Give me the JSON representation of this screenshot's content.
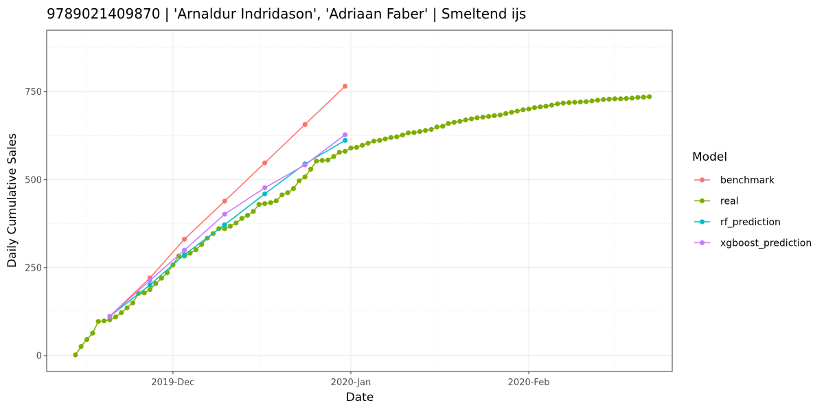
{
  "chart_data": {
    "type": "line",
    "title": "9789021409870 | 'Arnaldur Indridason', 'Adriaan Faber' | Smeltend ijs",
    "xlabel": "Date",
    "ylabel": "Daily Cumulative Sales",
    "legend_title": "Model",
    "legend_position": "right",
    "grid": true,
    "x_type": "date",
    "xlim": [
      "2019-11-09",
      "2020-02-26"
    ],
    "ylim": [
      -45,
      925
    ],
    "x_ticks": [
      {
        "date": "2019-12-01",
        "label": "2019-Dec"
      },
      {
        "date": "2020-01-01",
        "label": "2020-Jan"
      },
      {
        "date": "2020-02-01",
        "label": "2020-Feb"
      }
    ],
    "x_minor_ticks": [
      "2019-11-16",
      "2019-12-16",
      "2020-01-16",
      "2020-02-16"
    ],
    "y_ticks": [
      0,
      250,
      500,
      750
    ],
    "y_minor_ticks": [
      125,
      375,
      625,
      875
    ],
    "series": [
      {
        "name": "benchmark",
        "color": "#F8766D",
        "x": [
          "2019-11-20",
          "2019-11-27",
          "2019-12-03",
          "2019-12-10",
          "2019-12-17",
          "2019-12-24",
          "2019-12-31"
        ],
        "y": [
          112,
          221,
          331,
          439,
          548,
          657,
          766
        ]
      },
      {
        "name": "real",
        "color": "#7CAE00",
        "x": [
          "2019-11-14",
          "2019-11-15",
          "2019-11-16",
          "2019-11-17",
          "2019-11-18",
          "2019-11-19",
          "2019-11-20",
          "2019-11-21",
          "2019-11-22",
          "2019-11-23",
          "2019-11-24",
          "2019-11-25",
          "2019-11-26",
          "2019-11-27",
          "2019-11-28",
          "2019-11-29",
          "2019-11-30",
          "2019-12-01",
          "2019-12-02",
          "2019-12-03",
          "2019-12-04",
          "2019-12-05",
          "2019-12-06",
          "2019-12-07",
          "2019-12-08",
          "2019-12-09",
          "2019-12-10",
          "2019-12-11",
          "2019-12-12",
          "2019-12-13",
          "2019-12-14",
          "2019-12-15",
          "2019-12-16",
          "2019-12-17",
          "2019-12-18",
          "2019-12-19",
          "2019-12-20",
          "2019-12-21",
          "2019-12-22",
          "2019-12-23",
          "2019-12-24",
          "2019-12-25",
          "2019-12-26",
          "2019-12-27",
          "2019-12-28",
          "2019-12-29",
          "2019-12-30",
          "2019-12-31",
          "2020-01-01",
          "2020-01-02",
          "2020-01-03",
          "2020-01-04",
          "2020-01-05",
          "2020-01-06",
          "2020-01-07",
          "2020-01-08",
          "2020-01-09",
          "2020-01-10",
          "2020-01-11",
          "2020-01-12",
          "2020-01-13",
          "2020-01-14",
          "2020-01-15",
          "2020-01-16",
          "2020-01-17",
          "2020-01-18",
          "2020-01-19",
          "2020-01-20",
          "2020-01-21",
          "2020-01-22",
          "2020-01-23",
          "2020-01-24",
          "2020-01-25",
          "2020-01-26",
          "2020-01-27",
          "2020-01-28",
          "2020-01-29",
          "2020-01-30",
          "2020-01-31",
          "2020-02-01",
          "2020-02-02",
          "2020-02-03",
          "2020-02-04",
          "2020-02-05",
          "2020-02-06",
          "2020-02-07",
          "2020-02-08",
          "2020-02-09",
          "2020-02-10",
          "2020-02-11",
          "2020-02-12",
          "2020-02-13",
          "2020-02-14",
          "2020-02-15",
          "2020-02-16",
          "2020-02-17",
          "2020-02-18",
          "2020-02-19",
          "2020-02-20",
          "2020-02-21",
          "2020-02-22"
        ],
        "y": [
          2,
          26,
          46,
          64,
          97,
          99,
          102,
          110,
          122,
          136,
          150,
          177,
          178,
          188,
          205,
          220,
          236,
          258,
          283,
          283,
          291,
          301,
          316,
          334,
          347,
          361,
          361,
          368,
          377,
          390,
          399,
          410,
          430,
          432,
          435,
          440,
          457,
          463,
          475,
          497,
          508,
          530,
          553,
          555,
          556,
          566,
          578,
          581,
          590,
          592,
          598,
          604,
          610,
          612,
          616,
          620,
          622,
          627,
          633,
          634,
          637,
          640,
          643,
          650,
          652,
          660,
          663,
          666,
          670,
          673,
          676,
          678,
          680,
          682,
          684,
          688,
          692,
          695,
          699,
          701,
          705,
          707,
          709,
          712,
          716,
          718,
          719,
          720,
          721,
          722,
          724,
          726,
          728,
          729,
          730,
          730,
          731,
          732,
          734,
          735,
          736
        ]
      },
      {
        "name": "rf_prediction",
        "color": "#00BFC4",
        "x": [
          "2019-11-20",
          "2019-11-27",
          "2019-12-03",
          "2019-12-10",
          "2019-12-17",
          "2019-12-24",
          "2019-12-31"
        ],
        "y": [
          112,
          201,
          287,
          372,
          460,
          545,
          612
        ]
      },
      {
        "name": "xgboost_prediction",
        "color": "#C77CFF",
        "x": [
          "2019-11-20",
          "2019-11-27",
          "2019-12-03",
          "2019-12-10",
          "2019-12-17",
          "2019-12-24",
          "2019-12-31"
        ],
        "y": [
          112,
          214,
          300,
          402,
          477,
          542,
          628
        ]
      }
    ]
  }
}
